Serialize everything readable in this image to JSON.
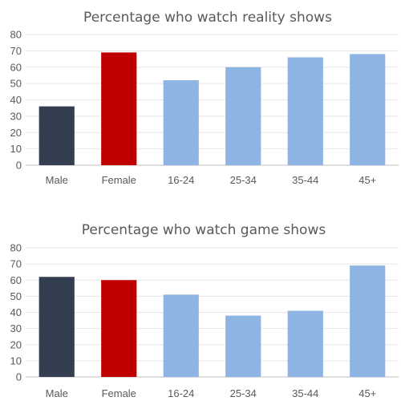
{
  "chart_data": [
    {
      "type": "bar",
      "title": "Percentage who watch reality shows",
      "xlabel": "",
      "ylabel": "",
      "categories": [
        "Male",
        "Female",
        "16-24",
        "25-34",
        "35-44",
        "45+"
      ],
      "values": [
        36,
        69,
        52,
        60,
        66,
        68
      ],
      "colors": [
        "#333f50",
        "#c00000",
        "#8db4e2",
        "#8db4e2",
        "#8db4e2",
        "#8db4e2"
      ],
      "ylim": [
        0,
        80
      ],
      "yticks": [
        0,
        10,
        20,
        30,
        40,
        50,
        60,
        70,
        80
      ],
      "grid": true,
      "legend": "none"
    },
    {
      "type": "bar",
      "title": "Percentage who watch game shows",
      "xlabel": "",
      "ylabel": "",
      "categories": [
        "Male",
        "Female",
        "16-24",
        "25-34",
        "35-44",
        "45+"
      ],
      "values": [
        62,
        60,
        51,
        38,
        41,
        69
      ],
      "colors": [
        "#333f50",
        "#c00000",
        "#8db4e2",
        "#8db4e2",
        "#8db4e2",
        "#8db4e2"
      ],
      "ylim": [
        0,
        80
      ],
      "yticks": [
        0,
        10,
        20,
        30,
        40,
        50,
        60,
        70,
        80
      ],
      "grid": true,
      "legend": "none"
    }
  ]
}
